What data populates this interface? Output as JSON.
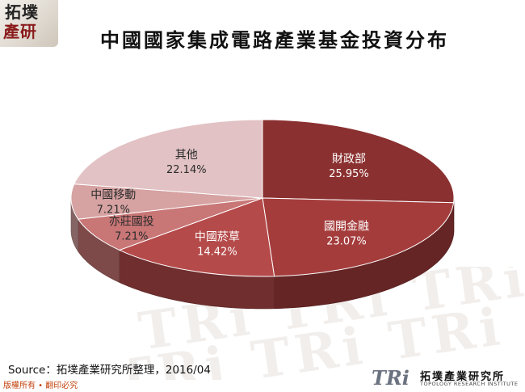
{
  "logo": {
    "line1": "拓墣",
    "line2": "產研"
  },
  "page": {
    "title": "中國國家集成電路產業基金投資分布",
    "source": "Source：拓墣產業研究所整理，2016/04",
    "rights": "版權所有 • 翻印必究",
    "brand_mark": "TRi",
    "brand_cn": "拓墣產業研究所",
    "brand_en": "TOPOLOGY RESEARCH INSTITUTE",
    "watermark": "TRi TRi TRi"
  },
  "chart_data": {
    "type": "pie",
    "style": "3d",
    "title": "",
    "categories": [
      "財政部",
      "國開金融",
      "中國菸草",
      "亦莊國投",
      "中國移動",
      "其他"
    ],
    "values": [
      25.95,
      23.07,
      14.42,
      7.21,
      7.21,
      22.14
    ],
    "labels": [
      "25.95%",
      "23.07%",
      "14.42%",
      "7.21%",
      "7.21%",
      "22.14%"
    ],
    "colors": [
      "#8b3030",
      "#a53c3c",
      "#b54a4a",
      "#c97676",
      "#d6a2a2",
      "#e2c2c4"
    ],
    "legend": "none"
  }
}
